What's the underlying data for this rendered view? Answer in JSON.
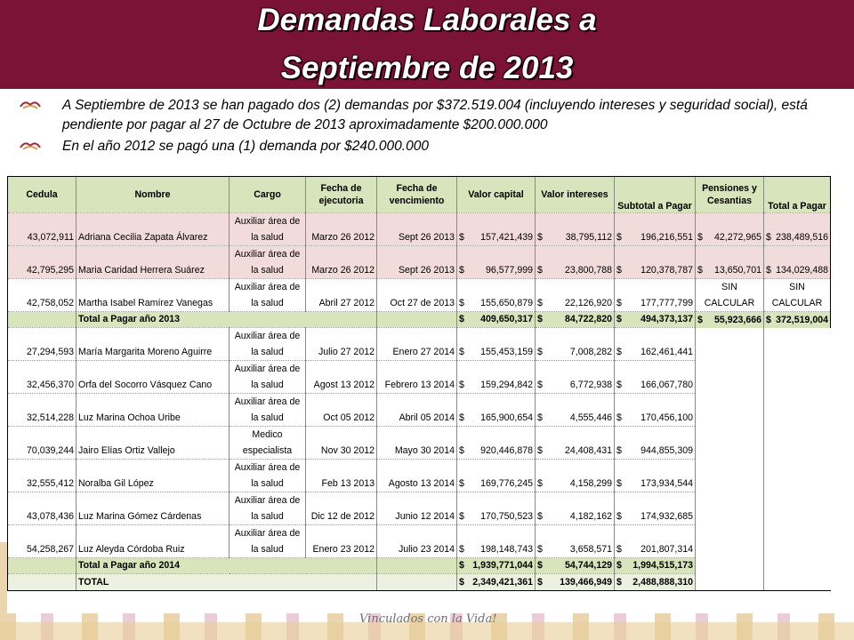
{
  "slide": {
    "title_line1": "Demandas Laborales a",
    "title_line2": "Septiembre de 2013",
    "bullets": [
      "A Septiembre de 2013 se han pagado dos (2) demandas por $372.519.004 (incluyendo intereses y seguridad social), está pendiente por pagar al 27 de Octubre de 2013 aproximadamente $200.000.000",
      "En el año 2012 se pagó una (1) demanda por $240.000.000"
    ],
    "footer": "Vinculados con la Vida!",
    "colors": {
      "header": "#7b1337",
      "table_header": "#d8e4bc",
      "paid_rows": "#f2dcdb"
    }
  },
  "table": {
    "headers": {
      "cedula": "Cedula",
      "nombre": "Nombre",
      "cargo": "Cargo",
      "fecha_ejec": "Fecha de ejecutoria",
      "fecha_venc": "Fecha de vencimiento",
      "valor_capital": "Valor capital",
      "valor_intereses": "Valor intereses",
      "subtotal": "Subtotal a Pagar",
      "pensiones": "Pensiones y Cesantias",
      "total": "Total a Pagar"
    },
    "currency": "$",
    "rows2013": [
      {
        "cedula": "43,072,911",
        "nombre": "Adriana Cecilia Zapata Álvarez",
        "cargo1": "Auxiliar área de",
        "cargo2": "la salud",
        "fe": "Marzo 26 2012",
        "fv": "Sept 26 2013",
        "capital": "157,421,439",
        "intereses": "38,795,112",
        "subtotal": "196,216,551",
        "pensiones": "42,272,965",
        "total": "238,489,516"
      },
      {
        "cedula": "42,795,295",
        "nombre": "Maria Caridad Herrera Suárez",
        "cargo1": "Auxiliar área de",
        "cargo2": "la salud",
        "fe": "Marzo  26 2012",
        "fv": "Sept 26 2013",
        "capital": "96,577,999",
        "intereses": "23,800,788",
        "subtotal": "120,378,787",
        "pensiones": "13,650,701",
        "total": "134,029,488"
      },
      {
        "cedula": "42,758,052",
        "nombre": "Martha Isabel Ramírez Vanegas",
        "cargo1": "Auxiliar área de",
        "cargo2": "la salud",
        "fe": "Abril 27 2012",
        "fv": "Oct 27 de 2013",
        "capital": "155,650,879",
        "intereses": "22,126,920",
        "subtotal": "177,777,799",
        "pensiones1": "SIN",
        "pensiones2": "CALCULAR",
        "total1": "SIN",
        "total2": "CALCULAR"
      }
    ],
    "subtotal2013": {
      "label": "Total a Pagar año 2013",
      "capital": "409,650,317",
      "intereses": "84,722,820",
      "subtotal": "494,373,137",
      "pensiones": "55,923,666",
      "total": "372,519,004"
    },
    "rows2014": [
      {
        "cedula": "27,294,593",
        "nombre": "María Margarita Moreno Aguirre",
        "cargo1": "Auxiliar área de",
        "cargo2": "la salud",
        "fe": "Julio 27 2012",
        "fv": "Enero 27 2014",
        "capital": "155,453,159",
        "intereses": "7,008,282",
        "subtotal": "162,461,441"
      },
      {
        "cedula": "32,456,370",
        "nombre": "Orfa del Socorro Vásquez Cano",
        "cargo1": "Auxiliar área de",
        "cargo2": "la salud",
        "fe": "Agost 13 2012",
        "fv": "Febrero 13 2014",
        "capital": "159,294,842",
        "intereses": "6,772,938",
        "subtotal": "166,067,780"
      },
      {
        "cedula": "32,514,228",
        "nombre": "Luz Marina Ochoa Uribe",
        "cargo1": "Auxiliar área de",
        "cargo2": "la salud",
        "fe": "Oct 05 2012",
        "fv": "Abril 05 2014",
        "capital": "165,900,654",
        "intereses": "4,555,446",
        "subtotal": "170,456,100"
      },
      {
        "cedula": "70,039,244",
        "nombre": "Jairo Elías Ortiz Vallejo",
        "cargo1": "Medico",
        "cargo2": "especialista",
        "fe": "Nov 30 2012",
        "fv": "Mayo 30 2014",
        "capital": "920,446,878",
        "intereses": "24,408,431",
        "subtotal": "944,855,309"
      },
      {
        "cedula": "32,555,412",
        "nombre": "Noralba Gil López",
        "cargo1": "Auxiliar área de",
        "cargo2": "la salud",
        "fe": "Feb 13 2013",
        "fv": "Agosto 13 2014",
        "capital": "169,776,245",
        "intereses": "4,158,299",
        "subtotal": "173,934,544"
      },
      {
        "cedula": "43,078,436",
        "nombre": "Luz Marina Gómez Cárdenas",
        "cargo1": "Auxiliar área de",
        "cargo2": "la salud",
        "fe": "Dic 12 de 2012",
        "fv": "Junio 12 2014",
        "capital": "170,750,523",
        "intereses": "4,182,162",
        "subtotal": "174,932,685"
      },
      {
        "cedula": "54,258,267",
        "nombre": "Luz Aleyda Córdoba Ruiz",
        "cargo1": "Auxiliar área de",
        "cargo2": "la salud",
        "fe": "Enero 23 2012",
        "fv": "Julio 23 2014",
        "capital": "198,148,743",
        "intereses": "3,658,571",
        "subtotal": "201,807,314"
      }
    ],
    "subtotal2014": {
      "label": "Total a Pagar año 2014",
      "capital": "1,939,771,044",
      "intereses": "54,744,129",
      "subtotal": "1,994,515,173"
    },
    "grand_total": {
      "label": "TOTAL",
      "capital": "2,349,421,361",
      "intereses": "139,466,949",
      "subtotal": "2,488,888,310"
    }
  }
}
